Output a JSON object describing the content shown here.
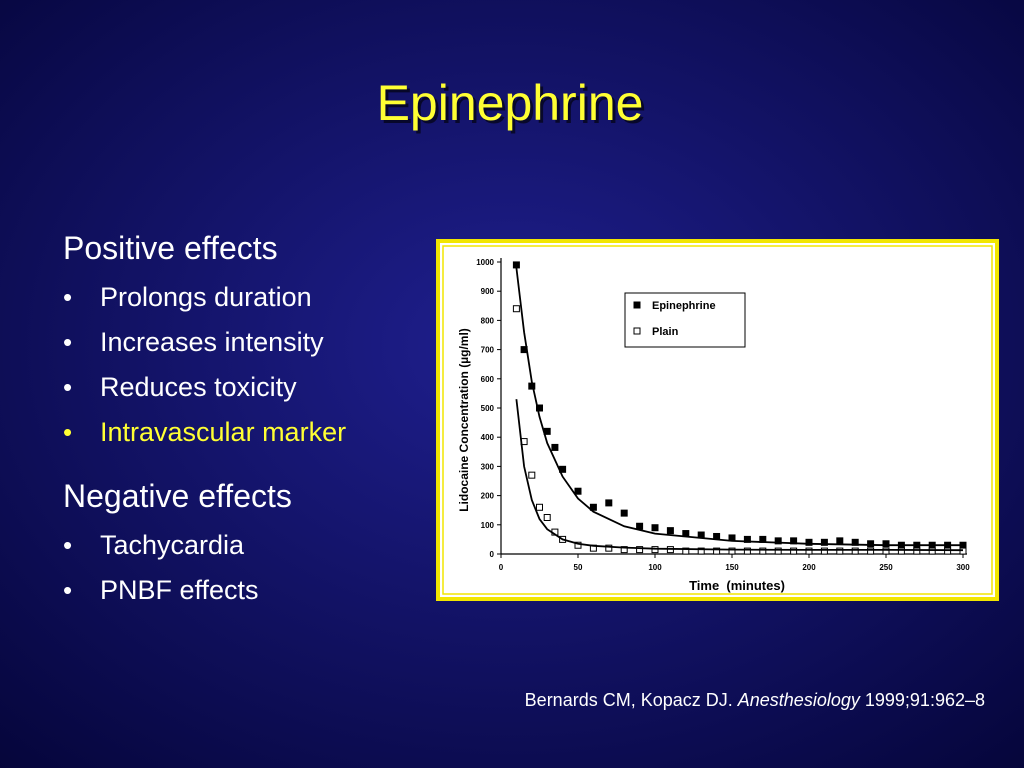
{
  "title": "Epinephrine",
  "sections": [
    {
      "heading": "Positive effects",
      "bullets": [
        {
          "text": "Prolongs duration",
          "color": "#ffffff"
        },
        {
          "text": "Increases intensity",
          "color": "#ffffff"
        },
        {
          "text": "Reduces toxicity",
          "color": "#ffffff"
        },
        {
          "text": "Intravascular marker",
          "color": "#ffff33"
        }
      ]
    },
    {
      "heading": "Negative effects",
      "bullets": [
        {
          "text": "Tachycardia",
          "color": "#ffffff"
        },
        {
          "text": "PNBF effects",
          "color": "#ffffff"
        }
      ]
    }
  ],
  "bullet_symbol": "•",
  "citation": {
    "authors": "Bernards CM, Kopacz DJ.",
    "journal": "Anesthesiology",
    "details": "1999;91:962–8"
  },
  "chart_data": {
    "type": "scatter",
    "x_label": "Time  (minutes)",
    "y_label": "Lidocaine Concentration (µg/ml)",
    "xlim": [
      0,
      300
    ],
    "ylim": [
      0,
      1000
    ],
    "xticks": [
      0,
      50,
      100,
      150,
      200,
      250,
      300
    ],
    "yticks": [
      0,
      100,
      200,
      300,
      400,
      500,
      600,
      700,
      800,
      900,
      1000
    ],
    "legend": "upper right",
    "series": [
      {
        "name": "Epinephrine",
        "marker": "filled-square",
        "color": "#000000",
        "x": [
          10,
          15,
          20,
          25,
          30,
          35,
          40,
          50,
          60,
          70,
          80,
          90,
          100,
          110,
          120,
          130,
          140,
          150,
          160,
          170,
          180,
          190,
          200,
          210,
          220,
          230,
          240,
          250,
          260,
          270,
          280,
          290,
          300
        ],
        "values": [
          990,
          700,
          575,
          500,
          420,
          365,
          290,
          215,
          160,
          175,
          140,
          95,
          90,
          80,
          70,
          65,
          60,
          55,
          50,
          50,
          45,
          45,
          40,
          40,
          45,
          40,
          35,
          35,
          30,
          30,
          30,
          30,
          30
        ]
      },
      {
        "name": "Plain",
        "marker": "open-square",
        "color": "#000000",
        "x": [
          10,
          15,
          20,
          25,
          30,
          35,
          40,
          50,
          60,
          70,
          80,
          90,
          100,
          110,
          120,
          130,
          140,
          150,
          160,
          170,
          180,
          190,
          200,
          210,
          220,
          230,
          240,
          250,
          260,
          270,
          280,
          290,
          300
        ],
        "values": [
          840,
          385,
          270,
          160,
          125,
          75,
          50,
          30,
          20,
          20,
          15,
          15,
          15,
          15,
          10,
          10,
          10,
          10,
          10,
          10,
          10,
          10,
          10,
          10,
          10,
          10,
          10,
          10,
          10,
          10,
          10,
          10,
          10
        ]
      },
      {
        "style": "line",
        "color": "#000000",
        "x": [
          10,
          15,
          20,
          25,
          30,
          40,
          50,
          60,
          80,
          100,
          150,
          200,
          250,
          300
        ],
        "values": [
          980,
          760,
          590,
          470,
          380,
          265,
          190,
          145,
          95,
          70,
          45,
          35,
          30,
          30
        ]
      },
      {
        "style": "line",
        "color": "#000000",
        "x": [
          10,
          15,
          20,
          25,
          30,
          40,
          50,
          60,
          80,
          100,
          150,
          200,
          250,
          300
        ],
        "values": [
          530,
          300,
          185,
          120,
          85,
          50,
          35,
          28,
          22,
          18,
          15,
          14,
          14,
          13
        ]
      }
    ]
  }
}
